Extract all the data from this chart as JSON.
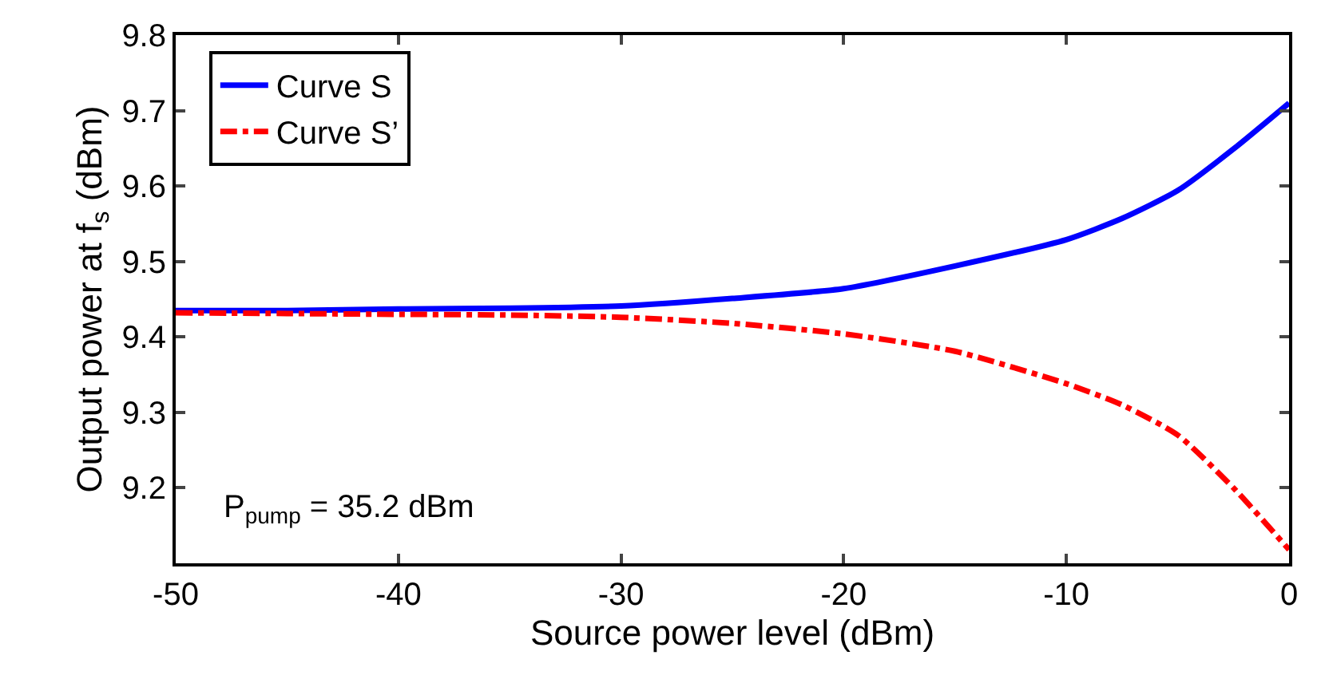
{
  "chart_data": {
    "type": "line",
    "xlabel": "Source power level (dBm)",
    "ylabel": "Output power at f$_{s}$ (dBm)",
    "xlim": [
      -50,
      0
    ],
    "ylim": [
      9.1,
      9.8
    ],
    "xticks": [
      -50,
      -40,
      -30,
      -20,
      -10,
      0
    ],
    "yticks": [
      {
        "value": 9.1,
        "label": null
      },
      9.2,
      9.3,
      9.4,
      9.5,
      9.6,
      9.7,
      9.8
    ],
    "legend": "top left",
    "marker": "none",
    "annotations": [
      "P$_{pump}$ = 35.2 dBm"
    ],
    "series": [
      {
        "name": "Curve S",
        "color": "#0000ff",
        "line_style": "solid",
        "x": [
          -50,
          -45,
          -40,
          -35,
          -30,
          -25,
          -20,
          -15,
          -10,
          -7.5,
          -5,
          -2.5,
          0
        ],
        "values": [
          9.435,
          9.435,
          9.437,
          9.438,
          9.441,
          9.451,
          9.464,
          9.494,
          9.529,
          9.557,
          9.594,
          9.649,
          9.71
        ]
      },
      {
        "name": "Curve S’",
        "color": "#ff0000",
        "line_style": "dashdot",
        "x": [
          -50,
          -45,
          -40,
          -35,
          -30,
          -25,
          -20,
          -15,
          -10,
          -7.5,
          -5,
          -2.5,
          0
        ],
        "values": [
          9.432,
          9.431,
          9.43,
          9.429,
          9.426,
          9.418,
          9.404,
          9.381,
          9.338,
          9.31,
          9.27,
          9.2,
          9.118
        ]
      }
    ]
  }
}
